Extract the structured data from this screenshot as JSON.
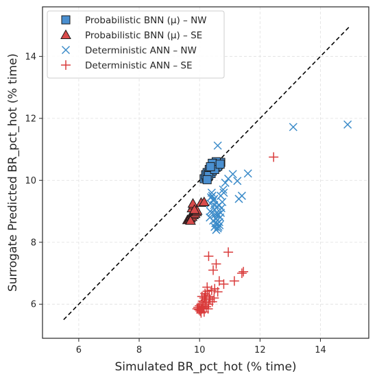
{
  "chart_data": {
    "type": "scatter",
    "xlabel": "Simulated BR_pct_hot (% time)",
    "ylabel": "Surrogate Predicted BR_pct_hot (% time)",
    "xlim": [
      4.8,
      15.6
    ],
    "ylim": [
      4.9,
      15.6
    ],
    "xticks": [
      6,
      8,
      10,
      12,
      14
    ],
    "yticks": [
      6,
      8,
      10,
      12,
      14
    ],
    "grid": true,
    "legend_position": "top-left",
    "reference_line": {
      "style": "dashed",
      "color": "#000000",
      "x": [
        5.5,
        14.95
      ],
      "y": [
        5.5,
        14.95
      ]
    },
    "series": [
      {
        "name": "Probabilistic BNN (μ) – NW",
        "marker": "square",
        "color": "#4a8fd0",
        "points": [
          [
            10.15,
            10.05
          ],
          [
            10.22,
            10.1
          ],
          [
            10.2,
            10.18
          ],
          [
            10.28,
            10.12
          ],
          [
            10.25,
            10.25
          ],
          [
            10.3,
            10.2
          ],
          [
            10.35,
            10.28
          ],
          [
            10.32,
            10.35
          ],
          [
            10.38,
            10.22
          ],
          [
            10.4,
            10.4
          ],
          [
            10.42,
            10.3
          ],
          [
            10.45,
            10.48
          ],
          [
            10.48,
            10.38
          ],
          [
            10.5,
            10.45
          ],
          [
            10.52,
            10.52
          ],
          [
            10.55,
            10.42
          ],
          [
            10.58,
            10.58
          ],
          [
            10.62,
            10.5
          ],
          [
            10.65,
            10.55
          ],
          [
            10.7,
            10.58
          ],
          [
            10.55,
            10.6
          ],
          [
            10.6,
            10.45
          ],
          [
            10.3,
            10.15
          ],
          [
            10.42,
            10.55
          ],
          [
            10.5,
            10.35
          ],
          [
            10.68,
            10.52
          ],
          [
            10.25,
            10.02
          ],
          [
            10.36,
            10.44
          ]
        ]
      },
      {
        "name": "Probabilistic BNN (μ) – SE",
        "marker": "triangle",
        "color": "#d94b4b",
        "points": [
          [
            9.6,
            8.72
          ],
          [
            9.65,
            8.75
          ],
          [
            9.68,
            8.8
          ],
          [
            9.7,
            8.78
          ],
          [
            9.72,
            8.85
          ],
          [
            9.75,
            8.82
          ],
          [
            9.78,
            8.9
          ],
          [
            9.8,
            8.88
          ],
          [
            9.82,
            8.95
          ],
          [
            9.85,
            8.92
          ],
          [
            9.88,
            9.0
          ],
          [
            9.9,
            8.98
          ],
          [
            9.75,
            9.1
          ],
          [
            9.8,
            9.2
          ],
          [
            9.78,
            9.25
          ],
          [
            10.05,
            9.28
          ],
          [
            10.15,
            9.3
          ],
          [
            9.7,
            8.7
          ],
          [
            9.92,
            9.02
          ],
          [
            9.83,
            9.05
          ]
        ]
      },
      {
        "name": "Deterministic ANN – NW",
        "marker": "x",
        "color": "#3b8bc9",
        "points": [
          [
            10.6,
            11.12
          ],
          [
            13.1,
            11.72
          ],
          [
            14.9,
            11.8
          ],
          [
            11.6,
            10.22
          ],
          [
            11.4,
            9.5
          ],
          [
            11.3,
            9.4
          ],
          [
            11.25,
            9.98
          ],
          [
            11.1,
            10.2
          ],
          [
            10.95,
            10.05
          ],
          [
            10.85,
            9.92
          ],
          [
            10.8,
            9.6
          ],
          [
            10.75,
            9.3
          ],
          [
            10.72,
            9.1
          ],
          [
            10.7,
            8.95
          ],
          [
            10.68,
            8.8
          ],
          [
            10.65,
            8.65
          ],
          [
            10.62,
            8.5
          ],
          [
            10.6,
            8.45
          ],
          [
            10.58,
            8.6
          ],
          [
            10.55,
            8.75
          ],
          [
            10.52,
            8.9
          ],
          [
            10.5,
            9.05
          ],
          [
            10.48,
            9.2
          ],
          [
            10.45,
            9.35
          ],
          [
            10.42,
            9.5
          ],
          [
            10.4,
            9.6
          ],
          [
            10.38,
            9.45
          ],
          [
            10.36,
            9.25
          ],
          [
            10.35,
            9.0
          ],
          [
            10.34,
            8.8
          ],
          [
            10.5,
            8.5
          ],
          [
            10.55,
            8.4
          ],
          [
            10.6,
            8.9
          ],
          [
            10.65,
            9.2
          ],
          [
            10.7,
            9.5
          ],
          [
            10.78,
            9.7
          ],
          [
            10.45,
            8.7
          ],
          [
            10.4,
            8.95
          ],
          [
            10.48,
            9.4
          ],
          [
            10.58,
            9.15
          ],
          [
            10.66,
            8.55
          ],
          [
            10.52,
            8.62
          ]
        ]
      },
      {
        "name": "Deterministic ANN – SE",
        "marker": "plus",
        "color": "#d93a3a",
        "points": [
          [
            12.45,
            10.75
          ],
          [
            10.95,
            7.68
          ],
          [
            10.3,
            7.55
          ],
          [
            10.55,
            7.3
          ],
          [
            10.45,
            7.1
          ],
          [
            10.65,
            6.75
          ],
          [
            11.15,
            6.75
          ],
          [
            11.4,
            7.0
          ],
          [
            11.45,
            7.05
          ],
          [
            10.8,
            6.65
          ],
          [
            10.6,
            6.4
          ],
          [
            10.5,
            6.5
          ],
          [
            10.4,
            6.45
          ],
          [
            10.25,
            6.55
          ],
          [
            10.2,
            6.3
          ],
          [
            10.15,
            6.2
          ],
          [
            10.1,
            6.1
          ],
          [
            10.05,
            6.0
          ],
          [
            10.0,
            5.95
          ],
          [
            9.95,
            5.9
          ],
          [
            9.92,
            5.85
          ],
          [
            9.98,
            5.82
          ],
          [
            10.02,
            5.78
          ],
          [
            10.08,
            5.85
          ],
          [
            10.12,
            5.95
          ],
          [
            10.18,
            6.05
          ],
          [
            10.22,
            5.92
          ],
          [
            10.3,
            6.0
          ],
          [
            10.35,
            6.15
          ],
          [
            10.42,
            6.08
          ],
          [
            10.28,
            5.85
          ],
          [
            10.15,
            5.75
          ],
          [
            10.05,
            5.72
          ],
          [
            10.18,
            6.35
          ],
          [
            10.08,
            6.25
          ],
          [
            10.22,
            6.15
          ],
          [
            10.32,
            6.25
          ],
          [
            10.48,
            6.2
          ],
          [
            10.12,
            5.88
          ],
          [
            10.26,
            6.42
          ]
        ]
      }
    ]
  }
}
